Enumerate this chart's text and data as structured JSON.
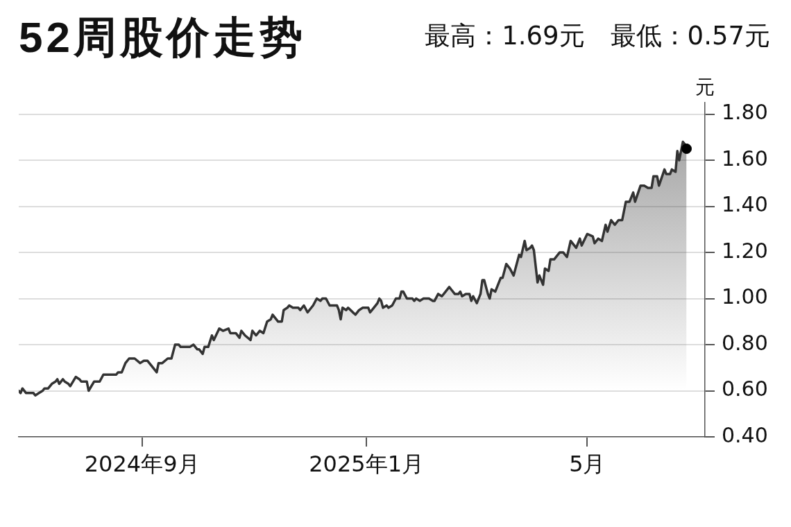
{
  "chart_data": {
    "type": "area",
    "title": "52周股价走势",
    "subtitle": "最高：1.69元　最低：0.57元",
    "ylabel": "元",
    "xlim": [
      "2024-06-26",
      "2025-07-04"
    ],
    "xticks": [
      {
        "value": "2024-09-01",
        "label": "2024年9月"
      },
      {
        "value": "2025-01-01",
        "label": "2025年1月"
      },
      {
        "value": "2025-05-01",
        "label": "5月"
      }
    ],
    "ylim": [
      0.4,
      1.85
    ],
    "yticks": [
      {
        "value": 0.4,
        "label": "0.40"
      },
      {
        "value": 0.6,
        "label": "0.60"
      },
      {
        "value": 0.8,
        "label": "0.80"
      },
      {
        "value": 1.0,
        "label": "1.00"
      },
      {
        "value": 1.2,
        "label": "1.20"
      },
      {
        "value": 1.4,
        "label": "1.40"
      },
      {
        "value": 1.6,
        "label": "1.60"
      },
      {
        "value": 1.8,
        "label": "1.80"
      }
    ],
    "grid": "y",
    "series": [
      {
        "color": "#333333",
        "x": [
          "2024-06-26",
          "2024-06-27",
          "2024-06-28",
          "2024-06-30",
          "2024-07-04",
          "2024-07-05",
          "2024-07-07",
          "2024-07-09",
          "2024-07-10",
          "2024-07-12",
          "2024-07-14",
          "2024-07-16",
          "2024-07-17",
          "2024-07-18",
          "2024-07-20",
          "2024-07-21",
          "2024-07-23",
          "2024-07-24",
          "2024-07-27",
          "2024-07-29",
          "2024-07-30",
          "2024-08-02",
          "2024-08-03",
          "2024-08-06",
          "2024-08-09",
          "2024-08-11",
          "2024-08-18",
          "2024-08-19",
          "2024-08-21",
          "2024-08-23",
          "2024-08-25",
          "2024-08-28",
          "2024-08-31",
          "2024-09-02",
          "2024-09-04",
          "2024-09-06",
          "2024-09-09",
          "2024-09-10",
          "2024-09-12",
          "2024-09-15",
          "2024-09-17",
          "2024-09-19",
          "2024-09-21",
          "2024-09-22",
          "2024-09-27",
          "2024-09-29",
          "2024-10-01",
          "2024-10-02",
          "2024-10-04",
          "2024-10-05",
          "2024-10-07",
          "2024-10-09",
          "2024-10-10",
          "2024-10-13",
          "2024-10-15",
          "2024-10-18",
          "2024-10-19",
          "2024-10-22",
          "2024-10-24",
          "2024-10-25",
          "2024-10-27",
          "2024-10-30",
          "2024-10-31",
          "2024-11-02",
          "2024-11-04",
          "2024-11-06",
          "2024-11-08",
          "2024-11-10",
          "2024-11-11",
          "2024-11-14",
          "2024-11-16",
          "2024-11-17",
          "2024-11-19",
          "2024-11-20",
          "2024-11-22",
          "2024-11-25",
          "2024-11-26",
          "2024-11-28",
          "2024-11-30",
          "2024-12-03",
          "2024-12-05",
          "2024-12-07",
          "2024-12-08",
          "2024-12-10",
          "2024-12-12",
          "2024-12-16",
          "2024-12-17",
          "2024-12-18",
          "2024-12-19",
          "2024-12-21",
          "2024-12-22",
          "2024-12-26",
          "2024-12-28",
          "2024-12-30",
          "2024-12-31",
          "2025-01-02",
          "2025-01-03",
          "2025-01-05",
          "2025-01-07",
          "2025-01-08",
          "2025-01-09",
          "2025-01-10",
          "2025-01-12",
          "2025-01-13",
          "2025-01-15",
          "2025-01-17",
          "2025-01-19",
          "2025-01-20",
          "2025-01-21",
          "2025-01-23",
          "2025-01-26",
          "2025-01-27",
          "2025-01-28",
          "2025-01-30",
          "2025-02-01",
          "2025-02-04",
          "2025-02-06",
          "2025-02-07",
          "2025-02-09",
          "2025-02-11",
          "2025-02-13",
          "2025-02-15",
          "2025-02-16",
          "2025-02-18",
          "2025-02-20",
          "2025-02-21",
          "2025-02-22",
          "2025-02-24",
          "2025-02-26",
          "2025-02-27",
          "2025-02-28",
          "2025-03-02",
          "2025-03-04",
          "2025-03-05",
          "2025-03-06",
          "2025-03-08",
          "2025-03-09",
          "2025-03-10",
          "2025-03-12",
          "2025-03-15",
          "2025-03-16",
          "2025-03-18",
          "2025-03-20",
          "2025-03-22",
          "2025-03-25",
          "2025-03-26",
          "2025-03-28",
          "2025-03-29",
          "2025-03-31",
          "2025-04-01",
          "2025-04-02",
          "2025-04-04",
          "2025-04-05",
          "2025-04-07",
          "2025-04-08",
          "2025-04-10",
          "2025-04-11",
          "2025-04-13",
          "2025-04-16",
          "2025-04-18",
          "2025-04-20",
          "2025-04-22",
          "2025-04-25",
          "2025-04-27",
          "2025-04-28",
          "2025-05-01",
          "2025-05-04",
          "2025-05-05",
          "2025-05-07",
          "2025-05-09",
          "2025-05-11",
          "2025-05-12",
          "2025-05-14",
          "2025-05-16",
          "2025-05-18",
          "2025-05-20",
          "2025-05-22",
          "2025-05-24",
          "2025-05-26",
          "2025-05-27",
          "2025-05-30",
          "2025-06-01",
          "2025-06-03",
          "2025-06-05",
          "2025-06-06",
          "2025-06-08",
          "2025-06-09",
          "2025-06-12",
          "2025-06-13",
          "2025-06-15",
          "2025-06-16",
          "2025-06-18",
          "2025-06-19",
          "2025-06-20",
          "2025-06-22",
          "2025-06-23",
          "2025-06-24"
        ],
        "values": [
          0.6,
          0.59,
          0.61,
          0.59,
          0.59,
          0.58,
          0.59,
          0.6,
          0.61,
          0.61,
          0.63,
          0.64,
          0.65,
          0.63,
          0.65,
          0.64,
          0.63,
          0.62,
          0.66,
          0.65,
          0.64,
          0.64,
          0.6,
          0.64,
          0.64,
          0.67,
          0.67,
          0.68,
          0.68,
          0.72,
          0.74,
          0.74,
          0.72,
          0.73,
          0.73,
          0.71,
          0.68,
          0.72,
          0.72,
          0.74,
          0.74,
          0.8,
          0.8,
          0.79,
          0.79,
          0.8,
          0.78,
          0.78,
          0.76,
          0.79,
          0.79,
          0.84,
          0.82,
          0.87,
          0.86,
          0.87,
          0.85,
          0.85,
          0.83,
          0.86,
          0.84,
          0.82,
          0.86,
          0.84,
          0.86,
          0.85,
          0.9,
          0.91,
          0.93,
          0.9,
          0.9,
          0.95,
          0.96,
          0.97,
          0.96,
          0.96,
          0.95,
          0.97,
          0.94,
          0.97,
          1.0,
          0.99,
          1.0,
          1.0,
          0.97,
          0.97,
          0.95,
          0.91,
          0.96,
          0.95,
          0.96,
          0.93,
          0.95,
          0.96,
          0.96,
          0.96,
          0.94,
          0.96,
          0.98,
          1.0,
          0.99,
          0.96,
          0.97,
          0.96,
          0.97,
          1.0,
          1.0,
          1.03,
          1.03,
          1.0,
          1.0,
          0.99,
          1.0,
          0.99,
          1.0,
          1.0,
          0.99,
          0.99,
          1.02,
          1.01,
          1.03,
          1.05,
          1.04,
          1.02,
          1.02,
          1.03,
          1.01,
          1.02,
          1.02,
          0.99,
          1.01,
          0.98,
          1.02,
          1.08,
          1.08,
          1.02,
          1.0,
          1.04,
          1.03,
          1.09,
          1.09,
          1.15,
          1.13,
          1.1,
          1.19,
          1.18,
          1.25,
          1.21,
          1.22,
          1.23,
          1.21,
          1.07,
          1.1,
          1.06,
          1.13,
          1.12,
          1.17,
          1.17,
          1.2,
          1.2,
          1.18,
          1.25,
          1.22,
          1.26,
          1.23,
          1.28,
          1.27,
          1.24,
          1.26,
          1.25,
          1.32,
          1.29,
          1.34,
          1.32,
          1.34,
          1.34,
          1.42,
          1.42,
          1.46,
          1.42,
          1.49,
          1.49,
          1.48,
          1.48,
          1.53,
          1.53,
          1.49,
          1.56,
          1.54,
          1.54,
          1.56,
          1.55,
          1.64,
          1.6,
          1.68,
          1.67,
          1.65
        ]
      },
      {
        "type": "scatter",
        "color": "#000000",
        "marker": "circle",
        "x": [
          "2025-06-24"
        ],
        "values": [
          1.65
        ]
      }
    ]
  }
}
